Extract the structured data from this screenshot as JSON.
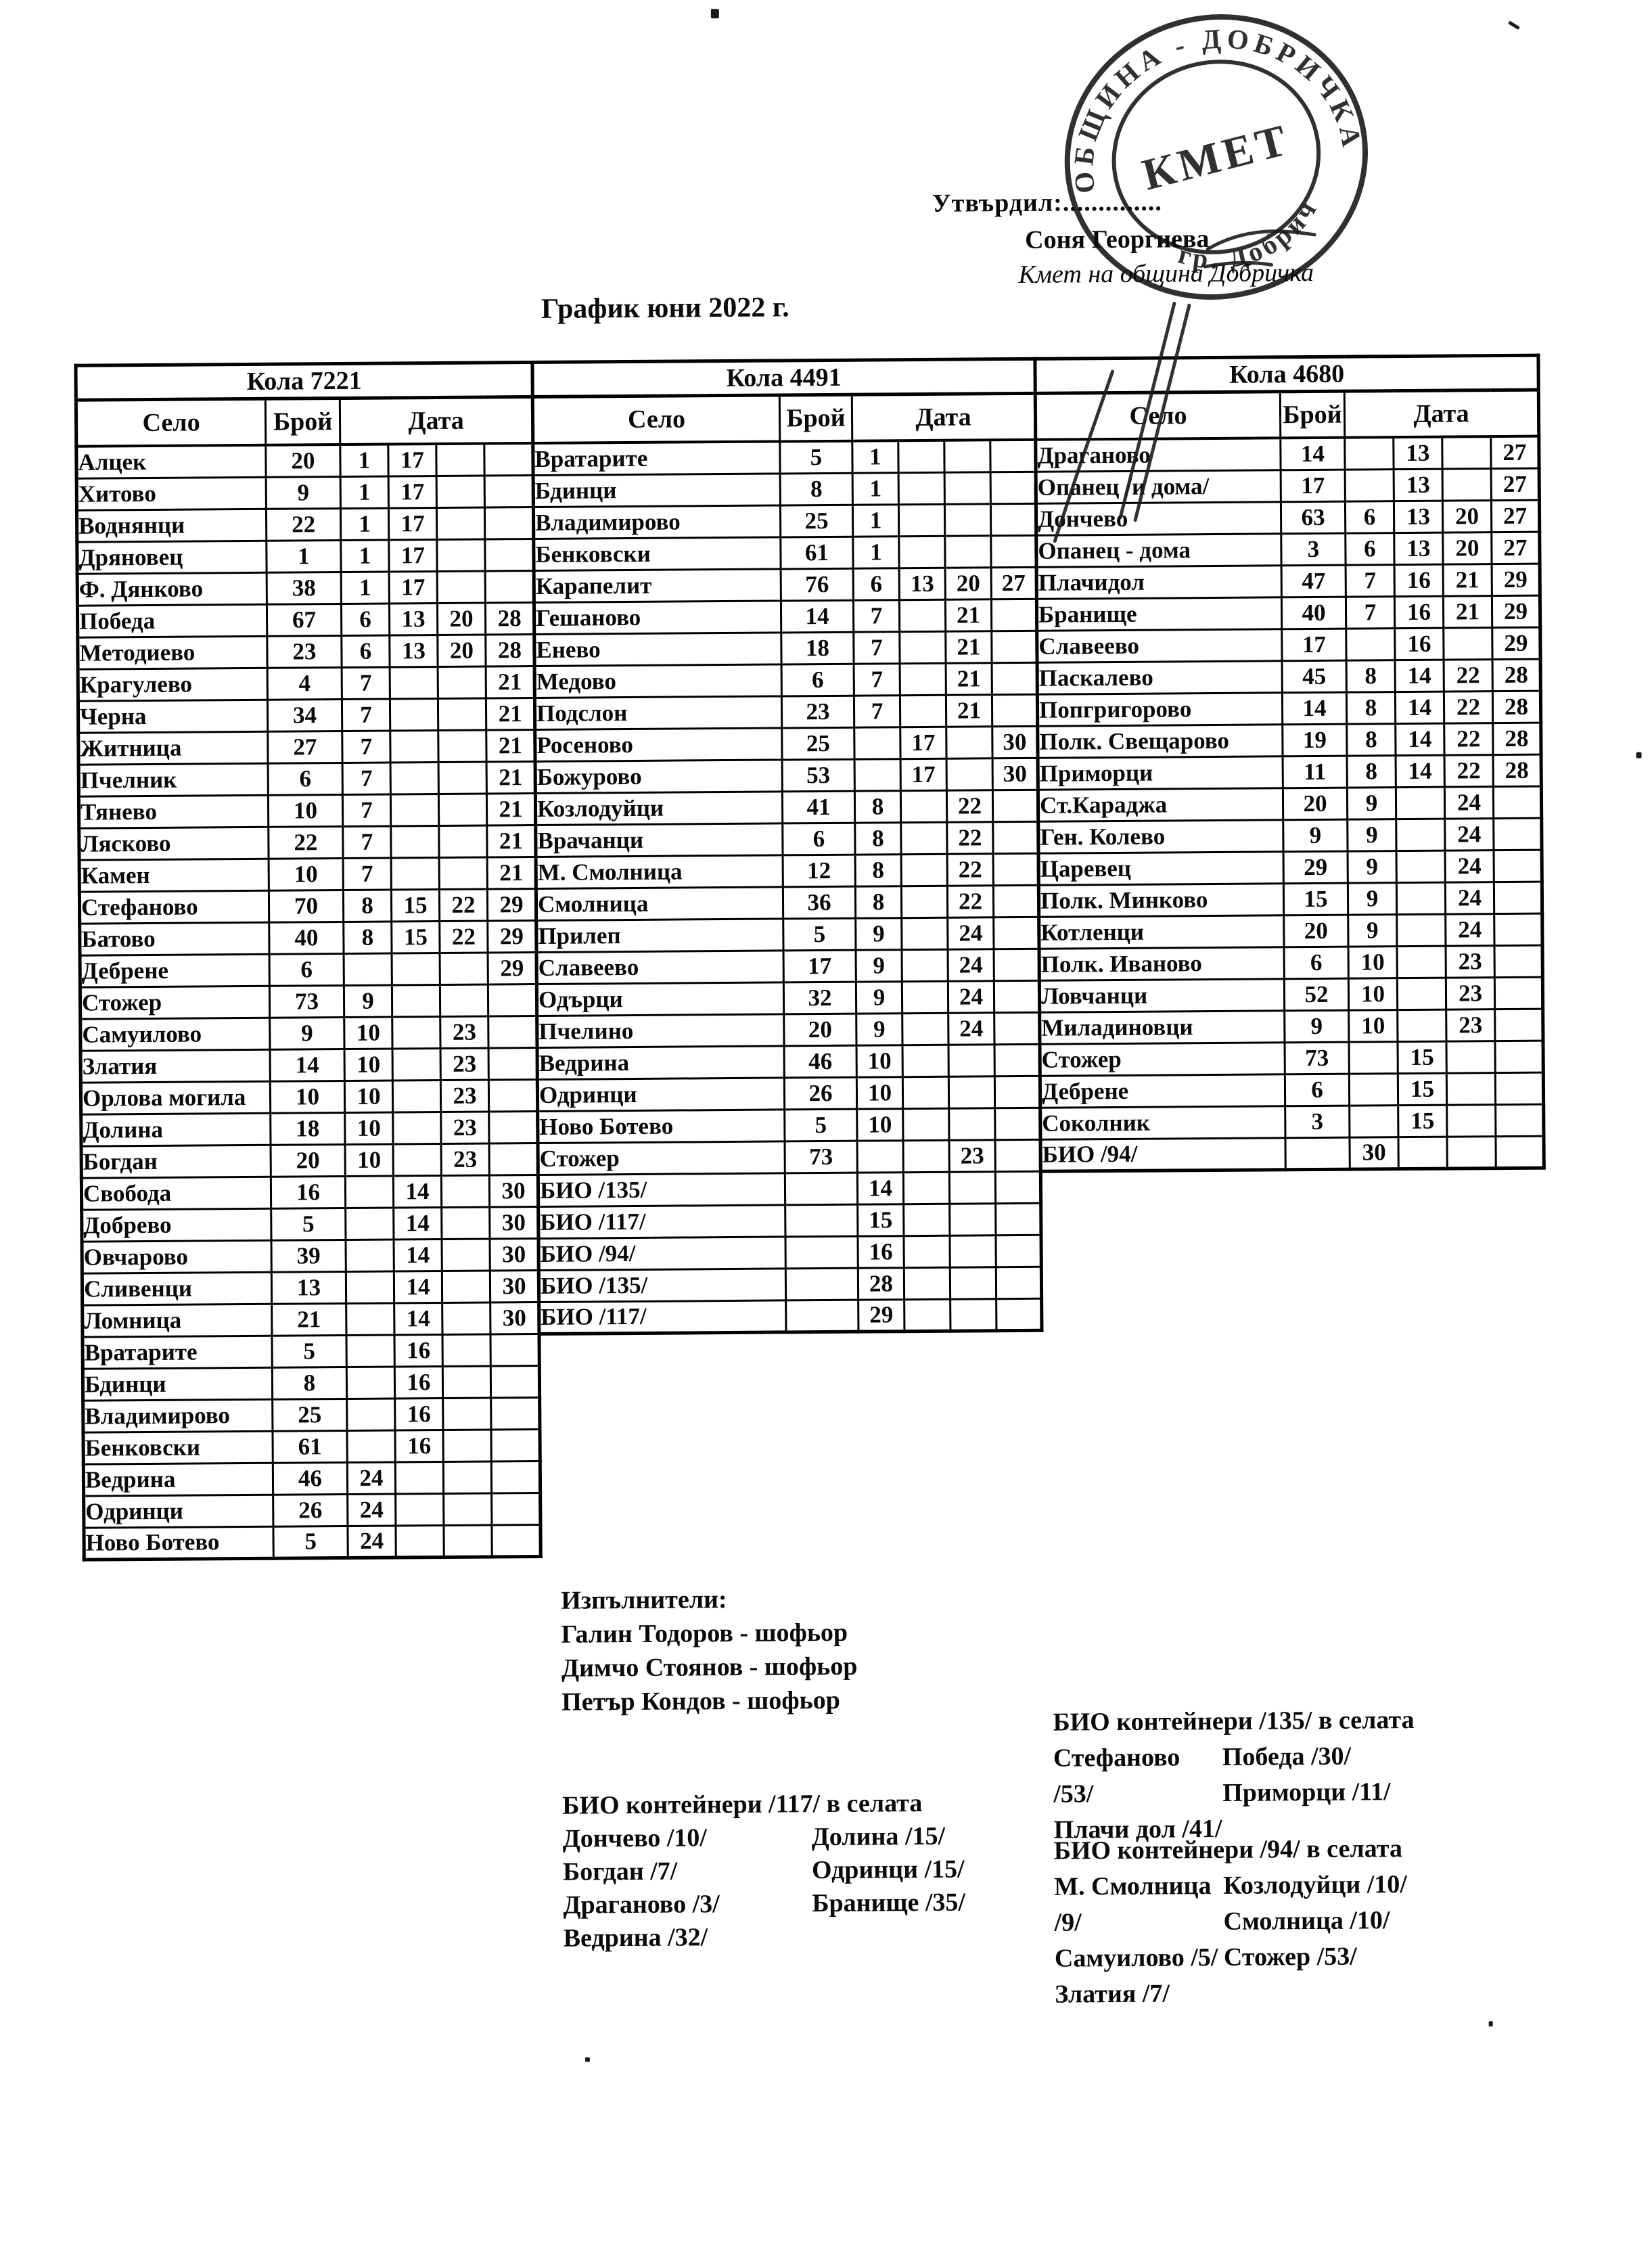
{
  "approval": {
    "label": "Утвърдил:..............",
    "name": "Соня Георгиева",
    "role": "Кмет на община Добричка"
  },
  "stamp": {
    "ring_top": "ОБЩИНА - ДОБРИЧКА",
    "ring_bottom": "гр. Добрич",
    "center": "КМЕТ"
  },
  "title": "График юни 2022 г.",
  "columns": {
    "village": "Село",
    "count": "Брой",
    "date": "Дата"
  },
  "tables": [
    {
      "title": "Кола 7221",
      "rows": [
        {
          "village": "Алцек",
          "count": "20",
          "dates": [
            "1",
            "17",
            "",
            ""
          ]
        },
        {
          "village": "Хитово",
          "count": "9",
          "dates": [
            "1",
            "17",
            "",
            ""
          ]
        },
        {
          "village": "Воднянци",
          "count": "22",
          "dates": [
            "1",
            "17",
            "",
            ""
          ]
        },
        {
          "village": "Дряновец",
          "count": "1",
          "dates": [
            "1",
            "17",
            "",
            ""
          ]
        },
        {
          "village": "Ф. Дянково",
          "count": "38",
          "dates": [
            "1",
            "17",
            "",
            ""
          ]
        },
        {
          "village": "Победа",
          "count": "67",
          "dates": [
            "6",
            "13",
            "20",
            "28"
          ]
        },
        {
          "village": "Методиево",
          "count": "23",
          "dates": [
            "6",
            "13",
            "20",
            "28"
          ]
        },
        {
          "village": "Крагулево",
          "count": "4",
          "dates": [
            "7",
            "",
            "",
            "21"
          ]
        },
        {
          "village": "Черна",
          "count": "34",
          "dates": [
            "7",
            "",
            "",
            "21"
          ]
        },
        {
          "village": "Житница",
          "count": "27",
          "dates": [
            "7",
            "",
            "",
            "21"
          ]
        },
        {
          "village": "Пчелник",
          "count": "6",
          "dates": [
            "7",
            "",
            "",
            "21"
          ]
        },
        {
          "village": "Тянево",
          "count": "10",
          "dates": [
            "7",
            "",
            "",
            "21"
          ]
        },
        {
          "village": "Лясково",
          "count": "22",
          "dates": [
            "7",
            "",
            "",
            "21"
          ]
        },
        {
          "village": "Камен",
          "count": "10",
          "dates": [
            "7",
            "",
            "",
            "21"
          ]
        },
        {
          "village": "Стефаново",
          "count": "70",
          "dates": [
            "8",
            "15",
            "22",
            "29"
          ]
        },
        {
          "village": "Батово",
          "count": "40",
          "dates": [
            "8",
            "15",
            "22",
            "29"
          ]
        },
        {
          "village": "Дебрене",
          "count": "6",
          "dates": [
            "",
            "",
            "",
            "29"
          ]
        },
        {
          "village": "Стожер",
          "count": "73",
          "dates": [
            "9",
            "",
            "",
            ""
          ]
        },
        {
          "village": "Самуилово",
          "count": "9",
          "dates": [
            "10",
            "",
            "23",
            ""
          ]
        },
        {
          "village": "Златия",
          "count": "14",
          "dates": [
            "10",
            "",
            "23",
            ""
          ]
        },
        {
          "village": "Орлова могила",
          "count": "10",
          "dates": [
            "10",
            "",
            "23",
            ""
          ]
        },
        {
          "village": "Долина",
          "count": "18",
          "dates": [
            "10",
            "",
            "23",
            ""
          ]
        },
        {
          "village": "Богдан",
          "count": "20",
          "dates": [
            "10",
            "",
            "23",
            ""
          ]
        },
        {
          "village": "Свобода",
          "count": "16",
          "dates": [
            "",
            "14",
            "",
            "30"
          ]
        },
        {
          "village": "Добрево",
          "count": "5",
          "dates": [
            "",
            "14",
            "",
            "30"
          ]
        },
        {
          "village": "Овчарово",
          "count": "39",
          "dates": [
            "",
            "14",
            "",
            "30"
          ]
        },
        {
          "village": "Сливенци",
          "count": "13",
          "dates": [
            "",
            "14",
            "",
            "30"
          ]
        },
        {
          "village": "Ломница",
          "count": "21",
          "dates": [
            "",
            "14",
            "",
            "30"
          ]
        },
        {
          "village": "Вратарите",
          "count": "5",
          "dates": [
            "",
            "16",
            "",
            ""
          ]
        },
        {
          "village": "Бдинци",
          "count": "8",
          "dates": [
            "",
            "16",
            "",
            ""
          ]
        },
        {
          "village": "Владимирово",
          "count": "25",
          "dates": [
            "",
            "16",
            "",
            ""
          ]
        },
        {
          "village": "Бенковски",
          "count": "61",
          "dates": [
            "",
            "16",
            "",
            ""
          ]
        },
        {
          "village": "Ведрина",
          "count": "46",
          "dates": [
            "24",
            "",
            "",
            ""
          ]
        },
        {
          "village": "Одринци",
          "count": "26",
          "dates": [
            "24",
            "",
            "",
            ""
          ]
        },
        {
          "village": "Ново Ботево",
          "count": "5",
          "dates": [
            "24",
            "",
            "",
            ""
          ]
        }
      ]
    },
    {
      "title": "Кола 4491",
      "rows": [
        {
          "village": "Вратарите",
          "count": "5",
          "dates": [
            "1",
            "",
            "",
            ""
          ]
        },
        {
          "village": "Бдинци",
          "count": "8",
          "dates": [
            "1",
            "",
            "",
            ""
          ]
        },
        {
          "village": "Владимирово",
          "count": "25",
          "dates": [
            "1",
            "",
            "",
            ""
          ]
        },
        {
          "village": "Бенковски",
          "count": "61",
          "dates": [
            "1",
            "",
            "",
            ""
          ]
        },
        {
          "village": "Карапелит",
          "count": "76",
          "dates": [
            "6",
            "13",
            "20",
            "27"
          ]
        },
        {
          "village": "Гешаново",
          "count": "14",
          "dates": [
            "7",
            "",
            "21",
            ""
          ]
        },
        {
          "village": "Енево",
          "count": "18",
          "dates": [
            "7",
            "",
            "21",
            ""
          ]
        },
        {
          "village": "Медово",
          "count": "6",
          "dates": [
            "7",
            "",
            "21",
            ""
          ]
        },
        {
          "village": "Подслон",
          "count": "23",
          "dates": [
            "7",
            "",
            "21",
            ""
          ]
        },
        {
          "village": "Росеново",
          "count": "25",
          "dates": [
            "",
            "17",
            "",
            "30"
          ]
        },
        {
          "village": "Божурово",
          "count": "53",
          "dates": [
            "",
            "17",
            "",
            "30"
          ]
        },
        {
          "village": "Козлодуйци",
          "count": "41",
          "dates": [
            "8",
            "",
            "22",
            ""
          ]
        },
        {
          "village": "Врачанци",
          "count": "6",
          "dates": [
            "8",
            "",
            "22",
            ""
          ]
        },
        {
          "village": "М. Смолница",
          "count": "12",
          "dates": [
            "8",
            "",
            "22",
            ""
          ]
        },
        {
          "village": "Смолница",
          "count": "36",
          "dates": [
            "8",
            "",
            "22",
            ""
          ]
        },
        {
          "village": "Прилеп",
          "count": "5",
          "dates": [
            "9",
            "",
            "24",
            ""
          ]
        },
        {
          "village": "Славеево",
          "count": "17",
          "dates": [
            "9",
            "",
            "24",
            ""
          ]
        },
        {
          "village": "Одърци",
          "count": "32",
          "dates": [
            "9",
            "",
            "24",
            ""
          ]
        },
        {
          "village": "Пчелино",
          "count": "20",
          "dates": [
            "9",
            "",
            "24",
            ""
          ]
        },
        {
          "village": "Ведрина",
          "count": "46",
          "dates": [
            "10",
            "",
            "",
            ""
          ]
        },
        {
          "village": "Одринци",
          "count": "26",
          "dates": [
            "10",
            "",
            "",
            ""
          ]
        },
        {
          "village": "Ново Ботево",
          "count": "5",
          "dates": [
            "10",
            "",
            "",
            ""
          ]
        },
        {
          "village": "Стожер",
          "count": "73",
          "dates": [
            "",
            "",
            "23",
            ""
          ]
        },
        {
          "village": "БИО /135/",
          "count": "",
          "dates": [
            "14",
            "",
            "",
            ""
          ]
        },
        {
          "village": "БИО /117/",
          "count": "",
          "dates": [
            "15",
            "",
            "",
            ""
          ]
        },
        {
          "village": "БИО /94/",
          "count": "",
          "dates": [
            "16",
            "",
            "",
            ""
          ]
        },
        {
          "village": "БИО /135/",
          "count": "",
          "dates": [
            "28",
            "",
            "",
            ""
          ]
        },
        {
          "village": "БИО /117/",
          "count": "",
          "dates": [
            "29",
            "",
            "",
            ""
          ]
        }
      ]
    },
    {
      "title": "Кола 4680",
      "rows": [
        {
          "village": "Драганово",
          "count": "14",
          "dates": [
            "",
            "13",
            "",
            "27"
          ]
        },
        {
          "village": "Опанец /и дома/",
          "count": "17",
          "dates": [
            "",
            "13",
            "",
            "27"
          ]
        },
        {
          "village": "Дончево",
          "count": "63",
          "dates": [
            "6",
            "13",
            "20",
            "27"
          ]
        },
        {
          "village": "Опанец - дома",
          "count": "3",
          "dates": [
            "6",
            "13",
            "20",
            "27"
          ]
        },
        {
          "village": "Плачидол",
          "count": "47",
          "dates": [
            "7",
            "16",
            "21",
            "29"
          ]
        },
        {
          "village": "Бранище",
          "count": "40",
          "dates": [
            "7",
            "16",
            "21",
            "29"
          ]
        },
        {
          "village": "Славеево",
          "count": "17",
          "dates": [
            "",
            "16",
            "",
            "29"
          ]
        },
        {
          "village": "Паскалево",
          "count": "45",
          "dates": [
            "8",
            "14",
            "22",
            "28"
          ]
        },
        {
          "village": "Попгригорово",
          "count": "14",
          "dates": [
            "8",
            "14",
            "22",
            "28"
          ]
        },
        {
          "village": "Полк. Свещарово",
          "count": "19",
          "dates": [
            "8",
            "14",
            "22",
            "28"
          ]
        },
        {
          "village": "Приморци",
          "count": "11",
          "dates": [
            "8",
            "14",
            "22",
            "28"
          ]
        },
        {
          "village": "Ст.Караджа",
          "count": "20",
          "dates": [
            "9",
            "",
            "24",
            ""
          ]
        },
        {
          "village": "Ген. Колево",
          "count": "9",
          "dates": [
            "9",
            "",
            "24",
            ""
          ]
        },
        {
          "village": "Царевец",
          "count": "29",
          "dates": [
            "9",
            "",
            "24",
            ""
          ]
        },
        {
          "village": "Полк. Минково",
          "count": "15",
          "dates": [
            "9",
            "",
            "24",
            ""
          ]
        },
        {
          "village": "Котленци",
          "count": "20",
          "dates": [
            "9",
            "",
            "24",
            ""
          ]
        },
        {
          "village": "Полк. Иваново",
          "count": "6",
          "dates": [
            "10",
            "",
            "23",
            ""
          ]
        },
        {
          "village": "Ловчанци",
          "count": "52",
          "dates": [
            "10",
            "",
            "23",
            ""
          ]
        },
        {
          "village": "Миладиновци",
          "count": "9",
          "dates": [
            "10",
            "",
            "23",
            ""
          ]
        },
        {
          "village": "Стожер",
          "count": "73",
          "dates": [
            "",
            "15",
            "",
            ""
          ]
        },
        {
          "village": "Дебрене",
          "count": "6",
          "dates": [
            "",
            "15",
            "",
            ""
          ]
        },
        {
          "village": "Соколник",
          "count": "3",
          "dates": [
            "",
            "15",
            "",
            ""
          ]
        },
        {
          "village": "БИО /94/",
          "count": "",
          "dates": [
            "30",
            "",
            "",
            ""
          ]
        }
      ]
    }
  ],
  "executors": {
    "title": "Изпълнители:",
    "items": [
      "Галин Тодоров - шофьор",
      "Димчо Стоянов - шофьор",
      "Петър Кондов - шофьор"
    ]
  },
  "bio_sections": [
    {
      "title": "БИО контейнери /117/ в селата",
      "left": [
        "Дончево /10/",
        "Богдан /7/",
        "Драганово /3/",
        "Ведрина /32/"
      ],
      "right": [
        "Долина /15/",
        "Одринци /15/",
        "Бранище /35/"
      ]
    },
    {
      "title": "БИО контейнери /135/ в селата",
      "left": [
        "Стефаново /53/",
        "Плачи дол /41/"
      ],
      "right": [
        "Победа /30/",
        "Приморци /11/"
      ]
    },
    {
      "title": "БИО контейнери /94/ в селата",
      "left": [
        "М. Смолница /9/",
        "Самуилово /5/",
        "Златия /7/"
      ],
      "right": [
        "Козлодуйци /10/",
        "Смолница /10/",
        "Стожер /53/"
      ]
    }
  ]
}
